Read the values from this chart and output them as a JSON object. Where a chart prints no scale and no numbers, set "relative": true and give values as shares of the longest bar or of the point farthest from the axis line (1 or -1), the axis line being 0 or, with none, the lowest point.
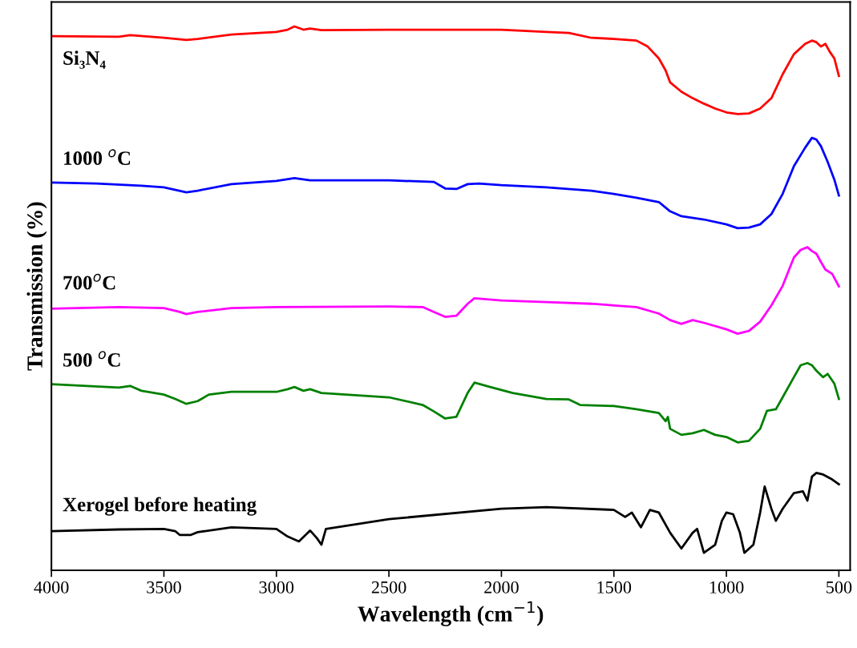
{
  "chart_data": {
    "type": "line",
    "relative": true,
    "xlabel": "Wavelength (cm$^{−1}$)",
    "ylabel": "Transmission (%)",
    "xlim": [
      4000,
      450
    ],
    "xticks": [
      4000,
      3500,
      3000,
      2500,
      2000,
      1500,
      1000,
      500
    ],
    "grid": false,
    "legend": false,
    "marker": "none",
    "line_style": "solid",
    "series": [
      {
        "name": "Si₃N₄",
        "color": "#ff0000",
        "x": [
          4000,
          3700,
          3650,
          3500,
          3400,
          3350,
          3200,
          3000,
          2950,
          2920,
          2880,
          2850,
          2800,
          2500,
          2000,
          1800,
          1700,
          1600,
          1500,
          1400,
          1350,
          1300,
          1270,
          1250,
          1200,
          1150,
          1100,
          1050,
          1000,
          950,
          900,
          850,
          800,
          750,
          700,
          650,
          620,
          600,
          580,
          560,
          540,
          520,
          500
        ],
        "values": [
          0.982,
          0.981,
          0.984,
          0.979,
          0.975,
          0.977,
          0.985,
          0.99,
          0.994,
          1,
          0.994,
          0.996,
          0.993,
          0.994,
          0.994,
          0.99,
          0.988,
          0.979,
          0.977,
          0.974,
          0.963,
          0.941,
          0.919,
          0.897,
          0.88,
          0.868,
          0.858,
          0.849,
          0.842,
          0.839,
          0.84,
          0.849,
          0.868,
          0.912,
          0.949,
          0.968,
          0.974,
          0.971,
          0.963,
          0.968,
          0.953,
          0.941,
          0.909
        ]
      },
      {
        "name": "1000 $^{o}$C",
        "color": "#0000ff",
        "x": [
          4000,
          3800,
          3600,
          3500,
          3400,
          3350,
          3200,
          3000,
          2920,
          2850,
          2500,
          2300,
          2250,
          2200,
          2150,
          2100,
          2000,
          1800,
          1600,
          1500,
          1400,
          1300,
          1250,
          1200,
          1100,
          1000,
          950,
          900,
          850,
          800,
          750,
          700,
          650,
          620,
          600,
          580,
          550,
          520,
          500
        ],
        "values": [
          0.713,
          0.711,
          0.707,
          0.704,
          0.695,
          0.698,
          0.71,
          0.716,
          0.721,
          0.717,
          0.717,
          0.714,
          0.702,
          0.701,
          0.71,
          0.711,
          0.708,
          0.704,
          0.698,
          0.692,
          0.685,
          0.677,
          0.66,
          0.651,
          0.645,
          0.636,
          0.629,
          0.63,
          0.636,
          0.655,
          0.692,
          0.743,
          0.777,
          0.795,
          0.792,
          0.78,
          0.751,
          0.718,
          0.689
        ]
      },
      {
        "name": "700$^{o}$C",
        "color": "#ff00ff",
        "x": [
          4000,
          3700,
          3500,
          3430,
          3400,
          3350,
          3200,
          3000,
          2500,
          2350,
          2300,
          2250,
          2200,
          2150,
          2120,
          2000,
          1800,
          1600,
          1500,
          1400,
          1300,
          1250,
          1200,
          1150,
          1100,
          1000,
          950,
          900,
          850,
          800,
          750,
          700,
          670,
          640,
          620,
          600,
          580,
          560,
          530,
          500
        ],
        "values": [
          0.481,
          0.484,
          0.482,
          0.475,
          0.471,
          0.475,
          0.482,
          0.484,
          0.485,
          0.484,
          0.475,
          0.466,
          0.468,
          0.49,
          0.5,
          0.496,
          0.493,
          0.49,
          0.487,
          0.484,
          0.472,
          0.46,
          0.453,
          0.46,
          0.455,
          0.443,
          0.435,
          0.44,
          0.457,
          0.487,
          0.523,
          0.575,
          0.589,
          0.594,
          0.587,
          0.582,
          0.567,
          0.553,
          0.545,
          0.522
        ]
      },
      {
        "name": "500 $^{o}$C",
        "color": "#008000",
        "x": [
          4000,
          3700,
          3650,
          3600,
          3500,
          3450,
          3400,
          3350,
          3300,
          3200,
          3000,
          2950,
          2920,
          2880,
          2850,
          2800,
          2500,
          2350,
          2300,
          2250,
          2200,
          2150,
          2120,
          2050,
          1950,
          1800,
          1700,
          1650,
          1500,
          1400,
          1300,
          1270,
          1260,
          1250,
          1200,
          1150,
          1100,
          1050,
          1000,
          950,
          900,
          850,
          820,
          780,
          750,
          700,
          670,
          640,
          620,
          600,
          570,
          550,
          520,
          500
        ],
        "values": [
          0.342,
          0.336,
          0.339,
          0.33,
          0.323,
          0.315,
          0.306,
          0.311,
          0.323,
          0.328,
          0.328,
          0.333,
          0.337,
          0.33,
          0.333,
          0.326,
          0.318,
          0.304,
          0.292,
          0.279,
          0.282,
          0.326,
          0.345,
          0.337,
          0.326,
          0.315,
          0.314,
          0.304,
          0.302,
          0.296,
          0.289,
          0.274,
          0.282,
          0.26,
          0.249,
          0.252,
          0.258,
          0.249,
          0.245,
          0.235,
          0.238,
          0.26,
          0.293,
          0.296,
          0.318,
          0.355,
          0.377,
          0.381,
          0.377,
          0.367,
          0.355,
          0.361,
          0.343,
          0.315
        ]
      },
      {
        "name": "Xerogel before heating",
        "color": "#000000",
        "x": [
          4000,
          3700,
          3500,
          3450,
          3430,
          3380,
          3350,
          3200,
          3000,
          2950,
          2900,
          2870,
          2850,
          2820,
          2800,
          2780,
          2500,
          2000,
          1800,
          1500,
          1450,
          1420,
          1380,
          1340,
          1300,
          1250,
          1200,
          1150,
          1130,
          1100,
          1050,
          1020,
          1000,
          970,
          940,
          920,
          880,
          850,
          830,
          800,
          780,
          750,
          700,
          660,
          640,
          620,
          600,
          570,
          530,
          500
        ],
        "values": [
          0.072,
          0.075,
          0.076,
          0.072,
          0.065,
          0.065,
          0.07,
          0.079,
          0.076,
          0.062,
          0.053,
          0.065,
          0.073,
          0.059,
          0.047,
          0.076,
          0.094,
          0.113,
          0.116,
          0.111,
          0.098,
          0.106,
          0.079,
          0.111,
          0.106,
          0.069,
          0.04,
          0.069,
          0.076,
          0.032,
          0.047,
          0.091,
          0.106,
          0.103,
          0.069,
          0.032,
          0.047,
          0.106,
          0.154,
          0.113,
          0.091,
          0.113,
          0.142,
          0.145,
          0.128,
          0.172,
          0.179,
          0.176,
          0.167,
          0.158
        ]
      }
    ]
  }
}
